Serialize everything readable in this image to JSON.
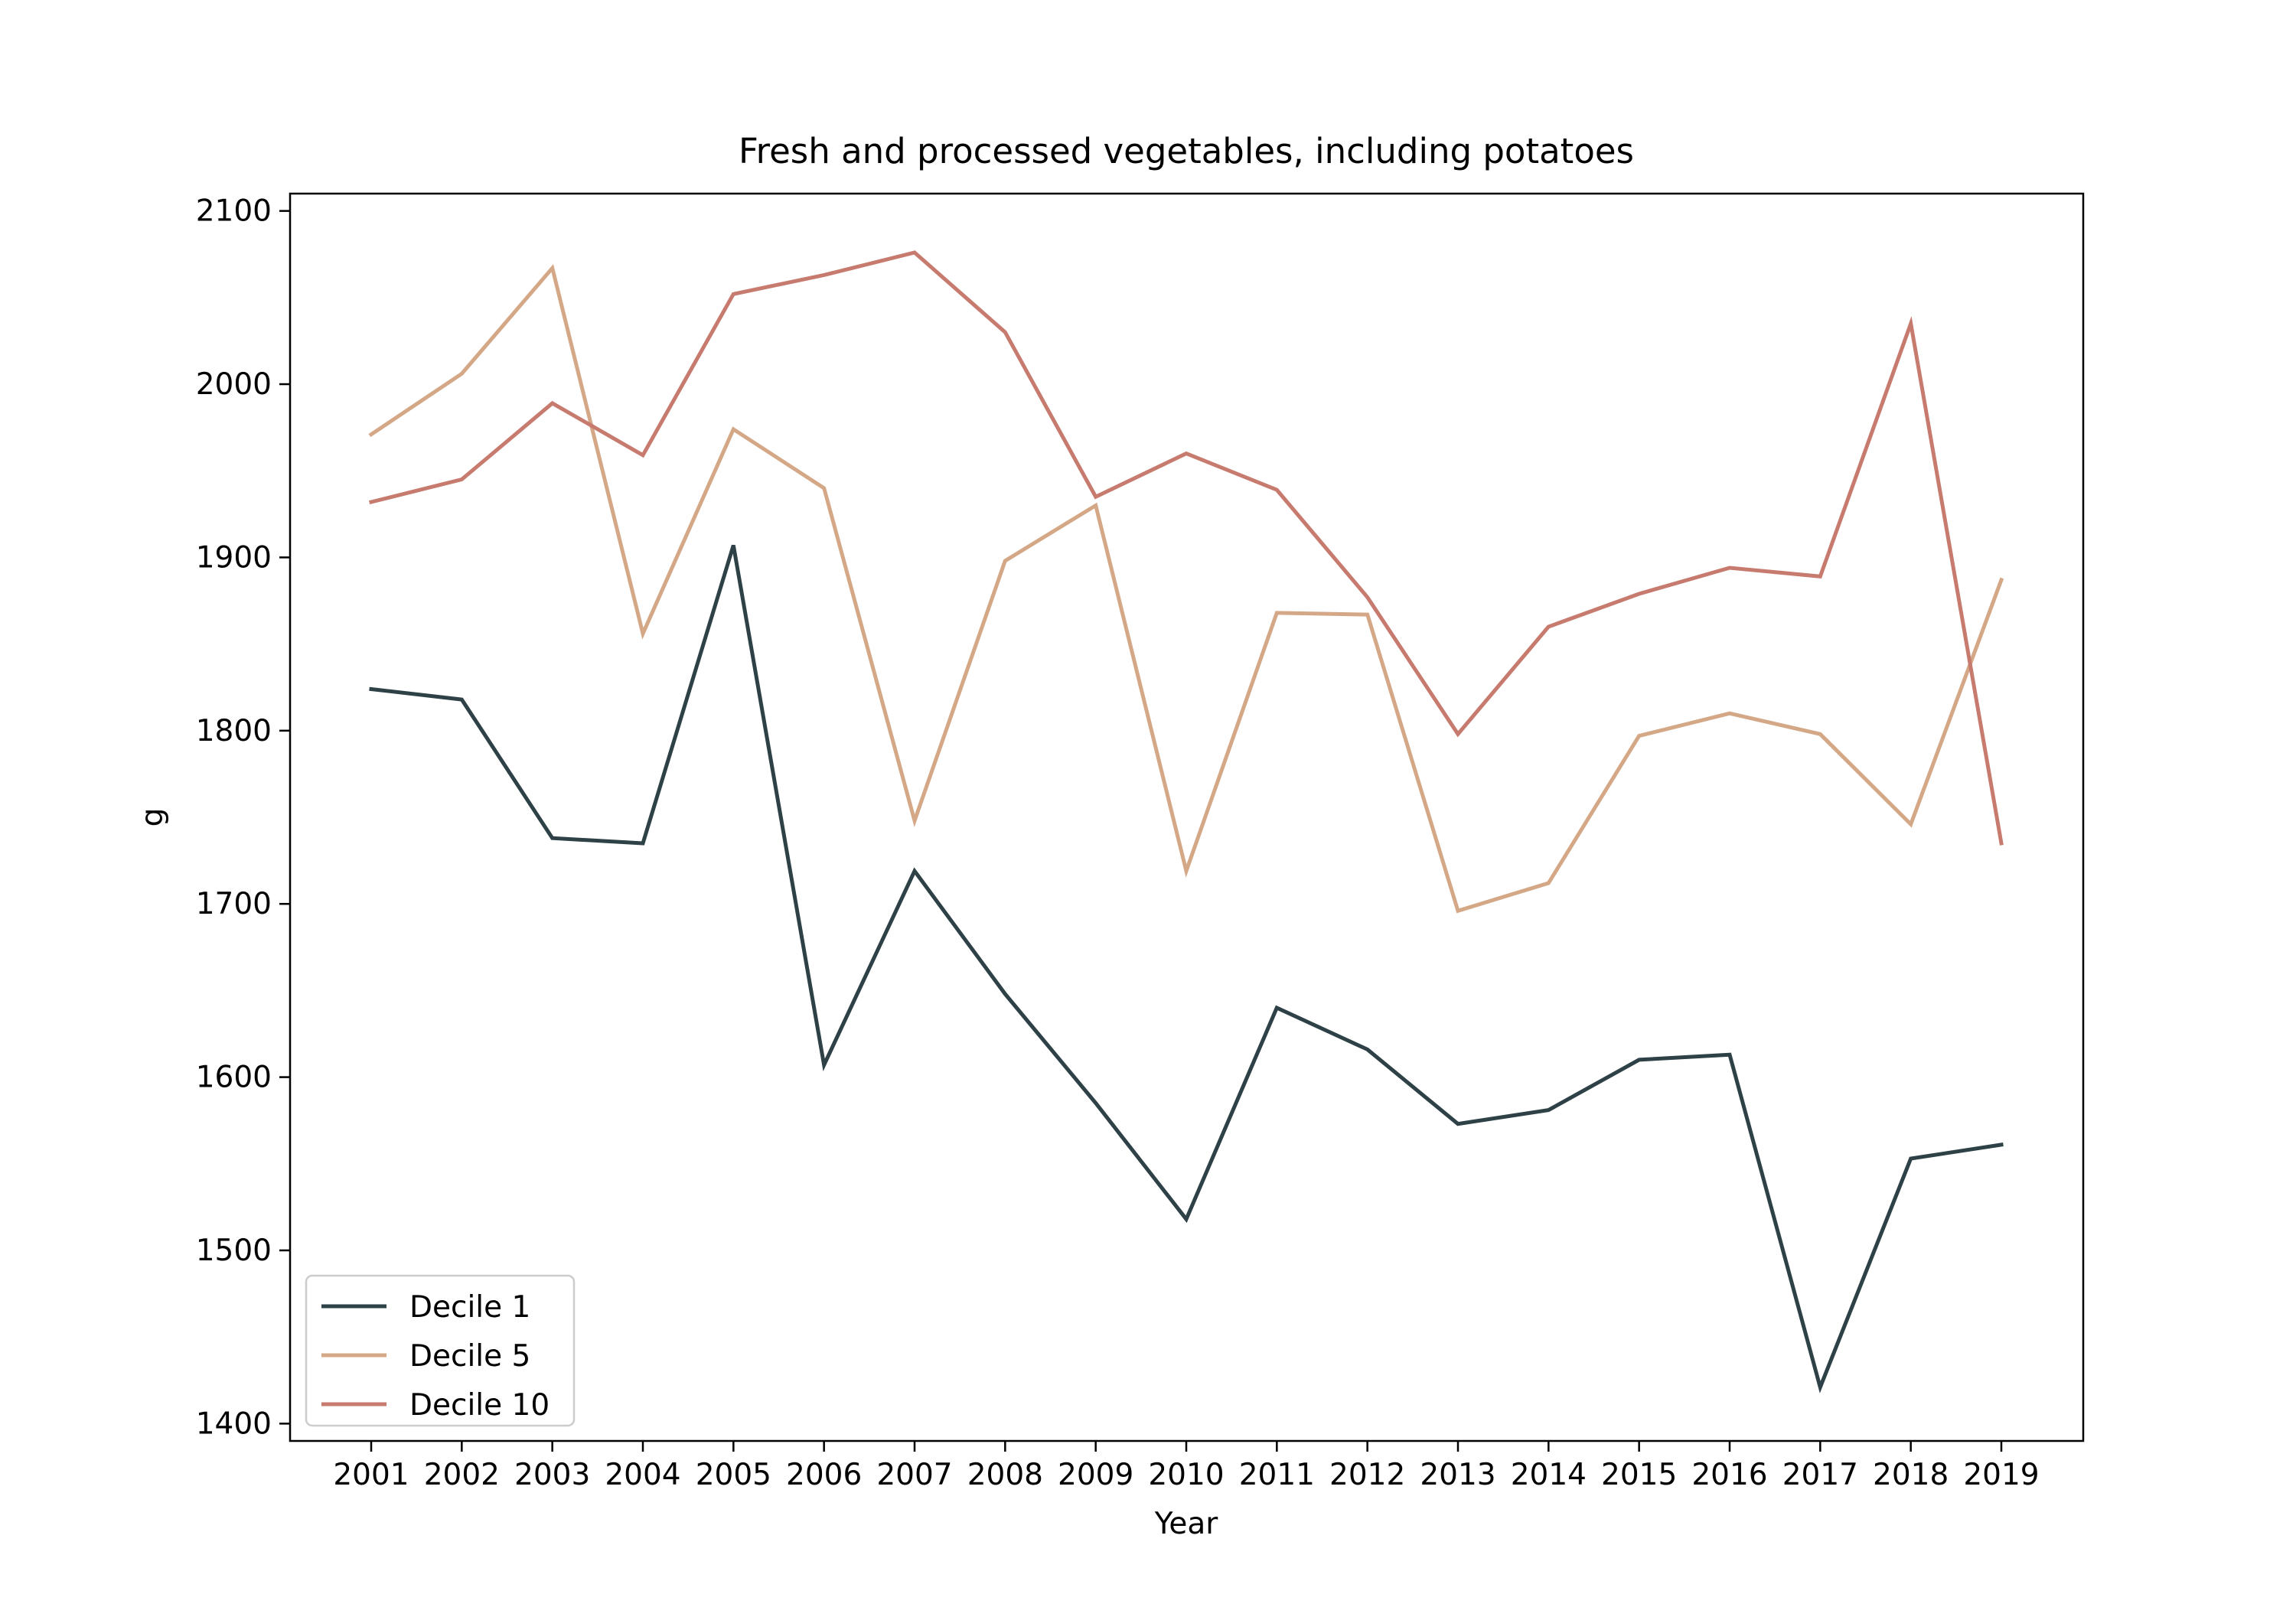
{
  "chart_data": {
    "type": "line",
    "title": "Fresh and processed vegetables, including potatoes",
    "xlabel": "Year",
    "ylabel": "g",
    "categories": [
      "2001",
      "2002",
      "2003",
      "2004",
      "2005",
      "2006",
      "2007",
      "2008",
      "2009",
      "2010",
      "2011",
      "2012",
      "2013",
      "2014",
      "2015",
      "2016",
      "2017",
      "2018",
      "2019"
    ],
    "ylim": [
      1390,
      2110
    ],
    "yticks": [
      1400,
      1500,
      1600,
      1700,
      1800,
      1900,
      2000,
      2100
    ],
    "grid": false,
    "legend_position": "lower-left",
    "series": [
      {
        "name": "Decile 1",
        "color": "#2e4147",
        "values": [
          1824,
          1818,
          1738,
          1735,
          1907,
          1607,
          1719,
          1648,
          1585,
          1518,
          1640,
          1616,
          1573,
          1581,
          1610,
          1613,
          1421,
          1553,
          1561
        ]
      },
      {
        "name": "Decile 5",
        "color": "#d4a886",
        "values": [
          1971,
          2006,
          2067,
          1856,
          1974,
          1940,
          1748,
          1898,
          1930,
          1719,
          1868,
          1867,
          1696,
          1712,
          1797,
          1810,
          1798,
          1746,
          1887
        ]
      },
      {
        "name": "Decile 10",
        "color": "#c77b6f",
        "values": [
          1932,
          1945,
          1989,
          1959,
          2052,
          2063,
          2076,
          2030,
          1935,
          1960,
          1939,
          1877,
          1798,
          1860,
          1879,
          1894,
          1889,
          2035,
          1735
        ]
      }
    ]
  }
}
